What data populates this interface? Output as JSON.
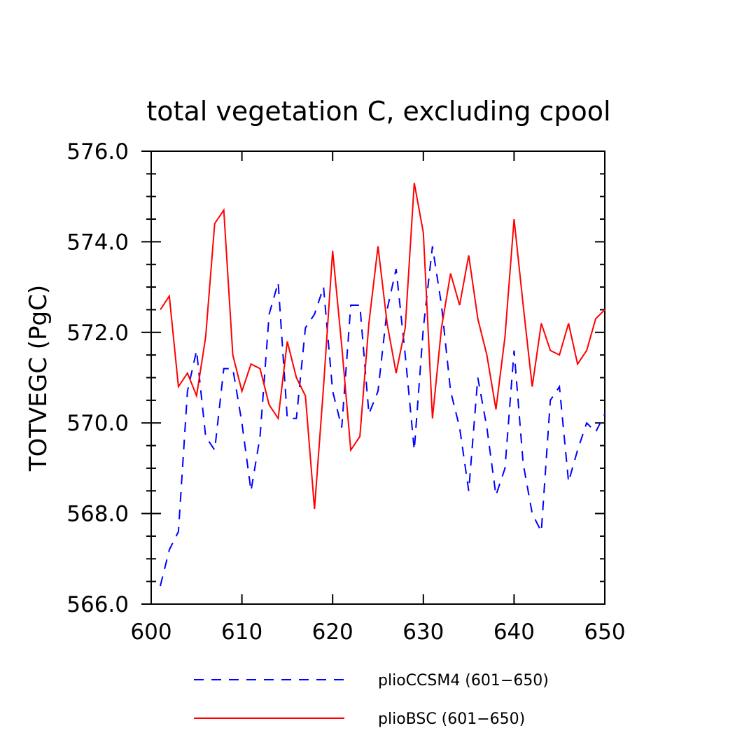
{
  "chart_data": {
    "type": "line",
    "title": "total vegetation C, excluding cpool",
    "xlabel": "",
    "ylabel": "TOTVEGC  (PgC)",
    "xlim": [
      600,
      650
    ],
    "ylim": [
      566.0,
      576.0
    ],
    "x_ticks": [
      "600",
      "610",
      "620",
      "630",
      "640",
      "650"
    ],
    "y_ticks": [
      "566.0",
      "568.0",
      "570.0",
      "572.0",
      "574.0",
      "576.0"
    ],
    "grid": false,
    "legend_position": "bottom",
    "x": [
      601,
      602,
      603,
      604,
      605,
      606,
      607,
      608,
      609,
      610,
      611,
      612,
      613,
      614,
      615,
      616,
      617,
      618,
      619,
      620,
      621,
      622,
      623,
      624,
      625,
      626,
      627,
      628,
      629,
      630,
      631,
      632,
      633,
      634,
      635,
      636,
      637,
      638,
      639,
      640,
      641,
      642,
      643,
      644,
      645,
      646,
      647,
      648,
      649,
      650
    ],
    "series": [
      {
        "name": "plioCCSM4 (601−650)",
        "color": "#0000ff",
        "style": "dashed",
        "values": [
          566.4,
          567.2,
          567.6,
          570.7,
          571.6,
          569.7,
          569.4,
          571.2,
          571.2,
          570.0,
          568.5,
          569.7,
          572.4,
          573.1,
          570.1,
          570.1,
          572.1,
          572.4,
          573.0,
          570.7,
          569.9,
          572.6,
          572.6,
          570.2,
          570.7,
          572.5,
          573.4,
          571.5,
          569.4,
          572.1,
          573.9,
          572.6,
          570.7,
          569.9,
          568.5,
          571.0,
          569.9,
          568.4,
          569.0,
          571.6,
          569.1,
          568.0,
          567.6,
          570.5,
          570.8,
          568.7,
          569.4,
          570.0,
          569.8,
          570.2
        ]
      },
      {
        "name": "plioBSC (601−650)",
        "color": "#ff0000",
        "style": "solid",
        "values": [
          572.5,
          572.8,
          570.8,
          571.1,
          570.6,
          571.9,
          574.4,
          574.7,
          571.5,
          570.7,
          571.3,
          571.2,
          570.4,
          570.1,
          571.8,
          571.0,
          570.6,
          568.1,
          570.8,
          573.8,
          571.7,
          569.4,
          569.7,
          572.2,
          573.9,
          572.2,
          571.1,
          572.1,
          575.3,
          574.2,
          570.1,
          572.1,
          573.3,
          572.6,
          573.7,
          572.3,
          571.5,
          570.3,
          571.9,
          574.5,
          572.6,
          570.8,
          572.2,
          571.6,
          571.5,
          572.2,
          571.3,
          571.6,
          572.3,
          572.5
        ]
      }
    ]
  }
}
